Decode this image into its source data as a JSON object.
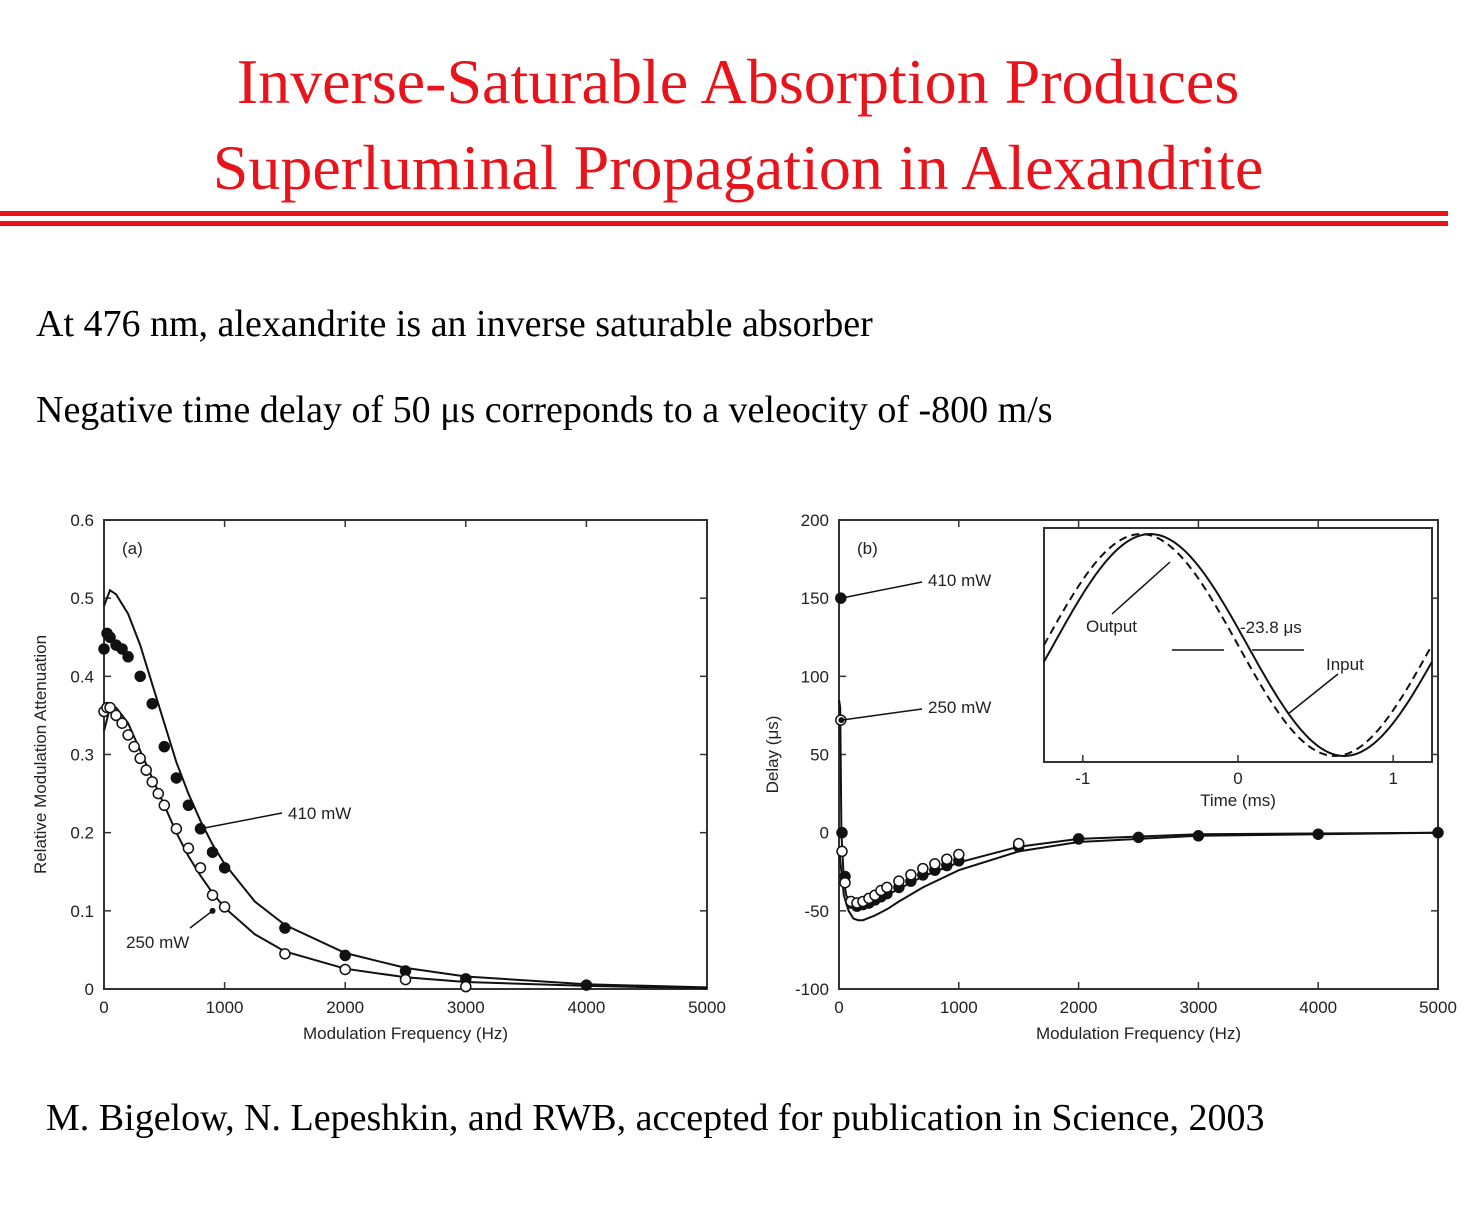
{
  "slide": {
    "title_line1": "Inverse-Saturable Absorption Produces",
    "title_line2": "Superluminal Propagation in Alexandrite",
    "bullet1": "At 476 nm, alexandrite is an inverse saturable absorber",
    "bullet2": "Negative time delay of 50 μs correponds to a veleocity of -800 m/s",
    "citation": "M. Bigelow, N. Lepeshkin, and RWB, accepted for publication in Science, 2003",
    "accent_color": "#e8141b"
  },
  "chart_data": [
    {
      "type": "scatter",
      "panel_label": "(a)",
      "xlabel": "Modulation Frequency (Hz)",
      "ylabel": "Relative Modulation Attenuation",
      "xlim": [
        0,
        5000
      ],
      "ylim": [
        0,
        0.6
      ],
      "xticks": [
        0,
        1000,
        2000,
        3000,
        4000,
        5000
      ],
      "yticks": [
        0,
        0.1,
        0.2,
        0.3,
        0.4,
        0.5,
        0.6
      ],
      "xtick_labels": [
        "0",
        "1000",
        "2000",
        "3000",
        "4000",
        "5000"
      ],
      "ytick_labels": [
        "0",
        "0.1",
        "0.2",
        "0.3",
        "0.4",
        "0.5",
        "0.6"
      ],
      "annotations": [
        "410 mW",
        "250 mW"
      ],
      "series": [
        {
          "name": "410 mW",
          "marker": "filled",
          "x": [
            0,
            25,
            50,
            100,
            150,
            200,
            300,
            400,
            500,
            600,
            700,
            800,
            900,
            1000,
            1500,
            2000,
            2500,
            3000,
            4000
          ],
          "y": [
            0.435,
            0.455,
            0.45,
            0.44,
            0.435,
            0.425,
            0.4,
            0.365,
            0.31,
            0.27,
            0.235,
            0.205,
            0.175,
            0.155,
            0.078,
            0.043,
            0.023,
            0.013,
            0.005
          ]
        },
        {
          "name": "250 mW",
          "marker": "open",
          "x": [
            0,
            25,
            50,
            100,
            150,
            200,
            250,
            300,
            350,
            400,
            450,
            500,
            600,
            700,
            800,
            900,
            1000,
            1500,
            2000,
            2500,
            3000
          ],
          "y": [
            0.355,
            0.36,
            0.36,
            0.35,
            0.34,
            0.325,
            0.31,
            0.295,
            0.28,
            0.265,
            0.25,
            0.235,
            0.205,
            0.18,
            0.155,
            0.12,
            0.105,
            0.045,
            0.025,
            0.012,
            0.003
          ]
        }
      ],
      "fit_curves": [
        {
          "x": [
            0,
            50,
            100,
            200,
            300,
            400,
            500,
            600,
            700,
            800,
            900,
            1000,
            1250,
            1500,
            2000,
            2500,
            3000,
            4000,
            5000
          ],
          "y": [
            0.49,
            0.51,
            0.505,
            0.48,
            0.44,
            0.39,
            0.34,
            0.29,
            0.25,
            0.215,
            0.185,
            0.16,
            0.112,
            0.082,
            0.046,
            0.027,
            0.016,
            0.006,
            0.002
          ]
        },
        {
          "x": [
            0,
            50,
            100,
            200,
            300,
            400,
            500,
            600,
            700,
            800,
            900,
            1000,
            1250,
            1500,
            2000,
            2500,
            3000,
            4000,
            5000
          ],
          "y": [
            0.33,
            0.36,
            0.36,
            0.34,
            0.305,
            0.27,
            0.235,
            0.2,
            0.17,
            0.145,
            0.123,
            0.104,
            0.07,
            0.048,
            0.026,
            0.015,
            0.009,
            0.004,
            0.001
          ]
        }
      ]
    },
    {
      "type": "scatter",
      "panel_label": "(b)",
      "xlabel": "Modulation Frequency (Hz)",
      "ylabel": "Delay (μs)",
      "xlim": [
        0,
        5000
      ],
      "ylim": [
        -100,
        200
      ],
      "xticks": [
        0,
        1000,
        2000,
        3000,
        4000,
        5000
      ],
      "yticks": [
        -100,
        -50,
        0,
        50,
        100,
        150,
        200
      ],
      "xtick_labels": [
        "0",
        "1000",
        "2000",
        "3000",
        "4000",
        "5000"
      ],
      "ytick_labels": [
        "-100",
        "-50",
        "0",
        "50",
        "100",
        "150",
        "200"
      ],
      "annotations": [
        "410 mW",
        "250 mW"
      ],
      "series": [
        {
          "name": "410 mW",
          "marker": "filled",
          "x": [
            15,
            25,
            50,
            100,
            150,
            200,
            250,
            300,
            350,
            400,
            500,
            600,
            700,
            800,
            900,
            1000,
            1500,
            2000,
            2500,
            3000,
            4000,
            5000
          ],
          "y": [
            150,
            0,
            -28,
            -45,
            -47,
            -46,
            -45,
            -43,
            -41,
            -39,
            -35,
            -31,
            -27,
            -24,
            -21,
            -18,
            -9,
            -4,
            -3,
            -2,
            -1,
            0
          ]
        },
        {
          "name": "250 mW",
          "marker": "open",
          "x": [
            15,
            25,
            50,
            100,
            150,
            200,
            250,
            300,
            350,
            400,
            500,
            600,
            700,
            800,
            900,
            1000,
            1500
          ],
          "y": [
            72,
            -12,
            -32,
            -44,
            -45,
            -44,
            -42,
            -40,
            -37,
            -35,
            -31,
            -27,
            -23,
            -20,
            -17,
            -14,
            -7
          ]
        }
      ],
      "fit_curves": [
        {
          "x": [
            0,
            10,
            20,
            40,
            60,
            100,
            150,
            200,
            300,
            400,
            500,
            700,
            1000,
            1500,
            2000,
            3000,
            5000
          ],
          "y": [
            85,
            80,
            0,
            -30,
            -40,
            -46,
            -48,
            -47,
            -44,
            -40,
            -36,
            -28,
            -19,
            -9,
            -4,
            -1,
            0
          ]
        },
        {
          "x": [
            0,
            40,
            80,
            120,
            160,
            200,
            300,
            400,
            500,
            700,
            1000,
            1500,
            2000,
            3000,
            5000
          ],
          "y": [
            -10,
            -40,
            -50,
            -55,
            -56,
            -56,
            -53,
            -49,
            -44,
            -35,
            -24,
            -12,
            -6,
            -2,
            0
          ]
        }
      ],
      "inset": {
        "xlabel": "Time (ms)",
        "xlim": [
          -1.25,
          1.25
        ],
        "xticks": [
          -1,
          0,
          1
        ],
        "xtick_labels": [
          "-1",
          "0",
          "1"
        ],
        "labels": [
          "Output",
          "Input",
          "-23.8 μs"
        ],
        "curve_description": "sinusoid, output leads input",
        "period_ms": 2.5,
        "shift_ms": 0.0238
      }
    }
  ]
}
